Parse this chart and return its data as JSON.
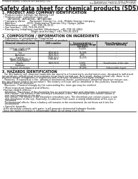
{
  "bg_color": "#ffffff",
  "header_left": "Product Name: Lithium Ion Battery Cell",
  "header_right1": "Substance Control: SDS-LIB-00010",
  "header_right2": "Establishment / Revision: Dec.7.2010",
  "title": "Safety data sheet for chemical products (SDS)",
  "section1_title": "1. PRODUCT AND COMPANY IDENTIFICATION",
  "section1_lines": [
    " • Product name: Lithium Ion Battery Cell",
    " • Product code: Cylindrical-type cell",
    "       (AF18650J, (AF18650L, (AF18650A)",
    " • Company name:     Panasonic Energy Co., Ltd., Mobile Energy Company",
    " • Address:              2001, Kadomatsu, Sumoto City, Hyogo, Japan",
    " • Telephone number:   +81-799-20-4111",
    " • Fax number:  +81-799-26-4120",
    " • Emergency telephone number (Weekdays): +81-799-20-3062",
    "                                     (Night and holiday): +81-799-26-4101"
  ],
  "section2_title": "2. COMPOSITION / INFORMATION ON INGREDIENTS",
  "section2_sub": " • Substance or preparation: Preparation",
  "section2_table_label": " • Information about the chemical nature of product",
  "table_col_headers": [
    "General chemical name",
    "CAS number",
    "Concentration /\nConcentration range\n(30-80%)",
    "Classification and\nhazard labeling"
  ],
  "table_rows": [
    [
      "Lithium cobalt oxide\n(LiMnCoMnO₄)",
      "-",
      "30-60%",
      "-"
    ],
    [
      "Iron",
      "7439-89-6",
      "10-30%",
      "-"
    ],
    [
      "Aluminum",
      "7429-90-5",
      "2-8%",
      "-"
    ],
    [
      "Graphite\n(Black or graphite-1)\n(Artificial graphite)",
      "77782-42-5\n7782-44-5",
      "10-25%",
      "-"
    ],
    [
      "Copper",
      "7440-50-8",
      "5-15%",
      "Sensitization of the skin"
    ],
    [
      "Separator",
      "-",
      "1-10%",
      "-"
    ],
    [
      "Organic electrolyte",
      "-",
      "10-20%",
      "Inflammable liquid"
    ]
  ],
  "section3_title": "3. HAZARDS IDENTIFICATION",
  "section3_lines": [
    "   For this battery cell, chemical materials are stored in a hermetically sealed metal case, designed to withstand",
    "temperatures and physical environments occurring in normal use. As a result, during normal use, there is no",
    "physical danger of ingestion or inspiration and no chance of battery electrolyte leakage.",
    "   However, if exposed to a fire, abnormal mechanical shocks, overcharged, abnormal electrical misuse use,",
    "the gas release control (or operation). The battery cell case will be breached or the particles, hazardous",
    "materials may be released.",
    "   Moreover, if heated strongly by the surrounding fire, toxic gas may be emitted."
  ],
  "section3_bullet1": " • Most important hazard and effects:",
  "section3_health_title": "  Human health effects:",
  "section3_health_lines": [
    "    Inhalation: The release of the electrolyte has an anesthesia action and stimulates a respiratory tract.",
    "    Skin contact: The release of the electrolyte stimulates a skin. The electrolyte skin contact causes a",
    "    sore and stimulation on the skin.",
    "    Eye contact: The release of the electrolyte stimulates eyes. The electrolyte eye contact causes a sore",
    "    and stimulation on the eye. Especially, a substance that causes a strong inflammation of the eyes is",
    "    contained.",
    "    Environmental effects: Since a battery cell remains in the environment, do not throw out it into the",
    "    environment."
  ],
  "section3_bullet2": " • Specific hazards:",
  "section3_specific_lines": [
    "  If the electrolyte contacts with water, it will generate detrimental hydrogen fluoride.",
    "  Since the liquid electrolyte is inflammable liquid, do not bring close to fire."
  ]
}
